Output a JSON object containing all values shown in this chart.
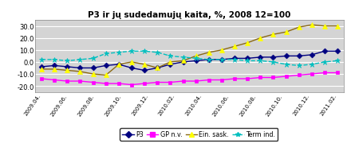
{
  "title": "P3 ir jų sudedamujų kaita, %, 2008 12=100",
  "xlabels": [
    "2009.04.",
    "2009.06.",
    "2009.08.",
    "2009.10.",
    "2009.12.",
    "2010.02.",
    "2010.04.",
    "2010.06.",
    "2010.08.",
    "2010.10.",
    "2010.12.",
    "2011.02."
  ],
  "ylim": [
    -25,
    35
  ],
  "yticks": [
    -20.0,
    -10.0,
    0.0,
    10.0,
    20.0,
    30.0
  ],
  "plot_bg": "#d4d4d4",
  "fig_bg": "#ffffff",
  "series": {
    "P3": {
      "color": "#000080",
      "marker": "D",
      "markersize": 3.5,
      "linewidth": 1.0,
      "linestyle": "-",
      "values": [
        -4,
        -3,
        -4,
        -5,
        -5,
        -3,
        -2,
        -5,
        -7,
        -5,
        -2,
        0,
        1,
        2,
        2,
        3,
        3,
        4,
        4,
        5,
        5,
        6,
        9,
        9
      ]
    },
    "GP n.v.": {
      "color": "#FF00FF",
      "marker": "s",
      "markersize": 3.5,
      "linewidth": 1.0,
      "linestyle": "-",
      "values": [
        -14,
        -15,
        -16,
        -16,
        -17,
        -18,
        -18,
        -19,
        -18,
        -17,
        -17,
        -16,
        -16,
        -15,
        -15,
        -14,
        -14,
        -13,
        -13,
        -12,
        -11,
        -10,
        -9,
        -9
      ]
    },
    "Ein. sask.": {
      "color": "#8B6914",
      "marker": "^",
      "markersize": 5,
      "linewidth": 1.0,
      "linestyle": "-",
      "marker_color": "#FFFF00",
      "values": [
        -6,
        -6,
        -7,
        -8,
        -10,
        -11,
        -2,
        0,
        -2,
        -5,
        0,
        1,
        5,
        8,
        10,
        13,
        16,
        20,
        23,
        25,
        29,
        31,
        30,
        30
      ]
    },
    "Term ind.": {
      "color": "#00BFBF",
      "marker": "*",
      "markersize": 5,
      "linewidth": 1.0,
      "linestyle": "--",
      "values": [
        2,
        2,
        1,
        2,
        3,
        7,
        8,
        9,
        9,
        8,
        5,
        4,
        3,
        2,
        2,
        2,
        1,
        1,
        0,
        -2,
        -3,
        -2,
        0,
        1
      ]
    }
  },
  "legend_order": [
    "P3",
    "GP n.v.",
    "Ein. sask.",
    "Term ind."
  ]
}
